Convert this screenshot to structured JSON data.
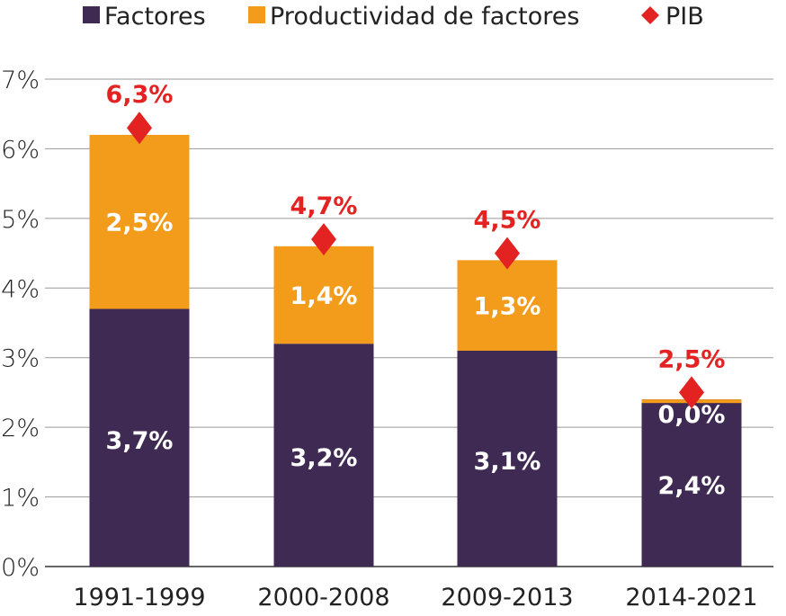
{
  "chart_data": {
    "type": "bar",
    "stacked": true,
    "title": "",
    "xlabel": "",
    "ylabel": "",
    "ylim": [
      0,
      7
    ],
    "yticks": [
      "0%",
      "1%",
      "2%",
      "3%",
      "4%",
      "5%",
      "6%",
      "7%"
    ],
    "grid": true,
    "legend_position": "top",
    "categories": [
      "1991-1999",
      "2000-2008",
      "2009-2013",
      "2014-2021"
    ],
    "series": [
      {
        "name": "Factores",
        "color": "#3f2a53",
        "values": [
          3.7,
          3.2,
          3.1,
          2.4
        ],
        "labels": [
          "3,7%",
          "3,2%",
          "3,1%",
          "2,4%"
        ]
      },
      {
        "name": "Productividad de factores",
        "color": "#f39c1c",
        "values": [
          2.5,
          1.4,
          1.3,
          0.0
        ],
        "labels": [
          "2,5%",
          "1,4%",
          "1,3%",
          "0,0%"
        ]
      },
      {
        "name": "PIB",
        "type": "marker",
        "color": "#e32322",
        "values": [
          6.3,
          4.7,
          4.5,
          2.5
        ],
        "labels": [
          "6,3%",
          "4,7%",
          "4,5%",
          "2,5%"
        ]
      }
    ]
  }
}
